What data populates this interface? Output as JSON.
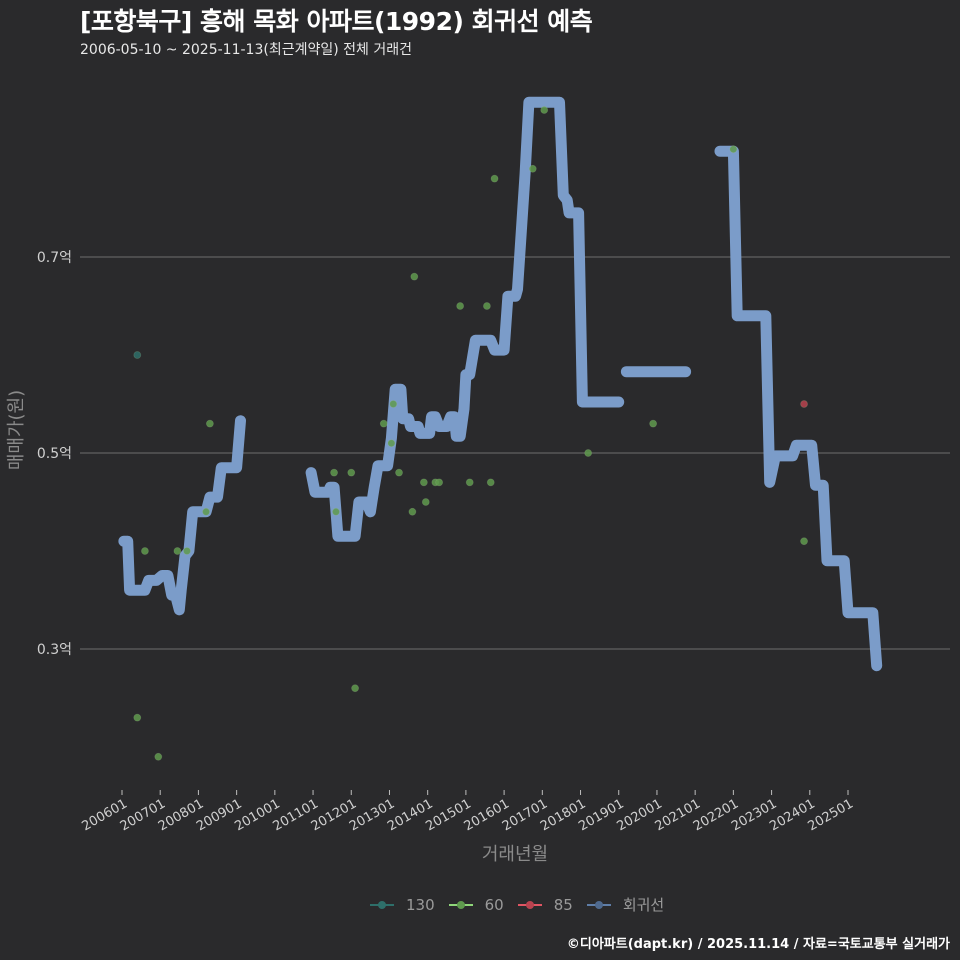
{
  "header": {
    "title": "[포항북구] 흥해 목화 아파트(1992) 회귀선 예측",
    "subtitle": "2006-05-10 ~ 2025-11-13(최근계약일) 전체 거래건"
  },
  "footer": {
    "credit": "©디아파트(dapt.kr) / 2025.11.14 / 자료=국토교통부 실거래가"
  },
  "colors": {
    "background": "#2a2a2c",
    "grid": "#6e6e6e",
    "series_130": "#2e6f6a",
    "series_60": "#5f9a4e",
    "series_85": "#b8434f",
    "regression": "#7b9cc9"
  },
  "chart_data": {
    "type": "scatter",
    "title": "[포항북구] 흥해 목화 아파트(1992) 회귀선 예측",
    "subtitle": "2006-05-10 ~ 2025-11-13(최근계약일) 전체 거래건",
    "xlabel": "거래년월",
    "ylabel": "매매가(원)",
    "x_ticks": [
      "200601",
      "200701",
      "200801",
      "200901",
      "201001",
      "201101",
      "201201",
      "201301",
      "201401",
      "201501",
      "201601",
      "201701",
      "201801",
      "201901",
      "202001",
      "202101",
      "202201",
      "202301",
      "202401",
      "202501"
    ],
    "y_ticks": [
      {
        "value": 0.3,
        "label": "0.3억"
      },
      {
        "value": 0.5,
        "label": "0.5억"
      },
      {
        "value": 0.7,
        "label": "0.7억"
      }
    ],
    "ylim": [
      0.16,
      0.88
    ],
    "xlim": [
      2005.5,
      2026.5
    ],
    "grid": "horizontal",
    "legend_position": "bottom",
    "legend": [
      {
        "name": "130",
        "color": "#2e6f6a"
      },
      {
        "name": "60",
        "color": "#5f9a4e"
      },
      {
        "name": "85",
        "color": "#b8434f"
      },
      {
        "name": "회귀선",
        "color": "#7b9cc9"
      }
    ],
    "series": [
      {
        "name": "130",
        "kind": "points",
        "points": [
          [
            2006.4,
            0.6
          ]
        ]
      },
      {
        "name": "60",
        "kind": "points",
        "points": [
          [
            2006.4,
            0.23
          ],
          [
            2006.6,
            0.4
          ],
          [
            2006.95,
            0.19
          ],
          [
            2007.45,
            0.4
          ],
          [
            2007.7,
            0.4
          ],
          [
            2008.2,
            0.44
          ],
          [
            2008.3,
            0.53
          ],
          [
            2011.55,
            0.48
          ],
          [
            2011.6,
            0.44
          ],
          [
            2012.0,
            0.48
          ],
          [
            2012.1,
            0.26
          ],
          [
            2012.85,
            0.53
          ],
          [
            2013.05,
            0.51
          ],
          [
            2013.1,
            0.55
          ],
          [
            2013.25,
            0.48
          ],
          [
            2013.6,
            0.44
          ],
          [
            2013.65,
            0.68
          ],
          [
            2013.9,
            0.47
          ],
          [
            2013.95,
            0.45
          ],
          [
            2014.2,
            0.47
          ],
          [
            2014.3,
            0.47
          ],
          [
            2014.85,
            0.65
          ],
          [
            2015.1,
            0.47
          ],
          [
            2015.55,
            0.65
          ],
          [
            2015.65,
            0.47
          ],
          [
            2015.75,
            0.78
          ],
          [
            2016.75,
            0.79
          ],
          [
            2017.05,
            0.85
          ],
          [
            2018.2,
            0.5
          ],
          [
            2019.9,
            0.53
          ],
          [
            2022.0,
            0.81
          ],
          [
            2023.85,
            0.41
          ]
        ]
      },
      {
        "name": "85",
        "kind": "points",
        "points": [
          [
            2023.85,
            0.55
          ]
        ]
      },
      {
        "name": "회귀선",
        "kind": "step-line",
        "segments": [
          [
            [
              2006.05,
              0.41
            ],
            [
              2006.15,
              0.41
            ],
            [
              2006.2,
              0.36
            ],
            [
              2006.6,
              0.36
            ],
            [
              2006.7,
              0.37
            ],
            [
              2006.9,
              0.37
            ],
            [
              2007.05,
              0.375
            ],
            [
              2007.2,
              0.375
            ],
            [
              2007.3,
              0.355
            ],
            [
              2007.4,
              0.355
            ],
            [
              2007.5,
              0.34
            ],
            [
              2007.55,
              0.36
            ],
            [
              2007.65,
              0.395
            ],
            [
              2007.75,
              0.4
            ],
            [
              2007.85,
              0.44
            ],
            [
              2008.2,
              0.44
            ],
            [
              2008.3,
              0.455
            ],
            [
              2008.5,
              0.455
            ],
            [
              2008.6,
              0.485
            ],
            [
              2009.0,
              0.485
            ],
            [
              2009.1,
              0.533
            ]
          ],
          [
            [
              2010.95,
              0.48
            ],
            [
              2011.05,
              0.46
            ],
            [
              2011.4,
              0.46
            ],
            [
              2011.45,
              0.465
            ],
            [
              2011.55,
              0.465
            ],
            [
              2011.65,
              0.415
            ],
            [
              2012.1,
              0.415
            ],
            [
              2012.2,
              0.45
            ],
            [
              2012.4,
              0.45
            ],
            [
              2012.5,
              0.44
            ],
            [
              2012.6,
              0.465
            ],
            [
              2012.7,
              0.487
            ],
            [
              2012.95,
              0.487
            ],
            [
              2013.05,
              0.515
            ],
            [
              2013.15,
              0.565
            ],
            [
              2013.3,
              0.565
            ],
            [
              2013.35,
              0.535
            ],
            [
              2013.5,
              0.535
            ],
            [
              2013.55,
              0.527
            ],
            [
              2013.75,
              0.527
            ],
            [
              2013.8,
              0.52
            ],
            [
              2014.05,
              0.52
            ],
            [
              2014.1,
              0.537
            ],
            [
              2014.2,
              0.537
            ],
            [
              2014.3,
              0.527
            ],
            [
              2014.5,
              0.527
            ],
            [
              2014.6,
              0.537
            ],
            [
              2014.7,
              0.537
            ],
            [
              2014.75,
              0.517
            ],
            [
              2014.85,
              0.517
            ],
            [
              2014.95,
              0.545
            ],
            [
              2015.0,
              0.58
            ],
            [
              2015.1,
              0.58
            ],
            [
              2015.25,
              0.615
            ],
            [
              2015.65,
              0.615
            ],
            [
              2015.75,
              0.605
            ],
            [
              2016.0,
              0.605
            ],
            [
              2016.1,
              0.66
            ],
            [
              2016.3,
              0.66
            ],
            [
              2016.35,
              0.667
            ],
            [
              2016.55,
              0.785
            ],
            [
              2016.65,
              0.858
            ],
            [
              2017.45,
              0.858
            ],
            [
              2017.55,
              0.763
            ],
            [
              2017.65,
              0.758
            ],
            [
              2017.7,
              0.745
            ],
            [
              2017.95,
              0.745
            ],
            [
              2018.05,
              0.552
            ],
            [
              2019.0,
              0.552
            ]
          ],
          [
            [
              2019.2,
              0.583
            ],
            [
              2020.75,
              0.583
            ]
          ],
          [
            [
              2021.65,
              0.808
            ],
            [
              2022.0,
              0.808
            ],
            [
              2022.1,
              0.64
            ],
            [
              2022.85,
              0.64
            ],
            [
              2022.95,
              0.47
            ],
            [
              2023.1,
              0.497
            ],
            [
              2023.55,
              0.497
            ],
            [
              2023.65,
              0.508
            ],
            [
              2024.05,
              0.508
            ],
            [
              2024.15,
              0.467
            ],
            [
              2024.35,
              0.467
            ],
            [
              2024.45,
              0.39
            ],
            [
              2024.9,
              0.39
            ],
            [
              2025.0,
              0.337
            ],
            [
              2025.65,
              0.337
            ],
            [
              2025.75,
              0.283
            ]
          ]
        ]
      }
    ]
  }
}
